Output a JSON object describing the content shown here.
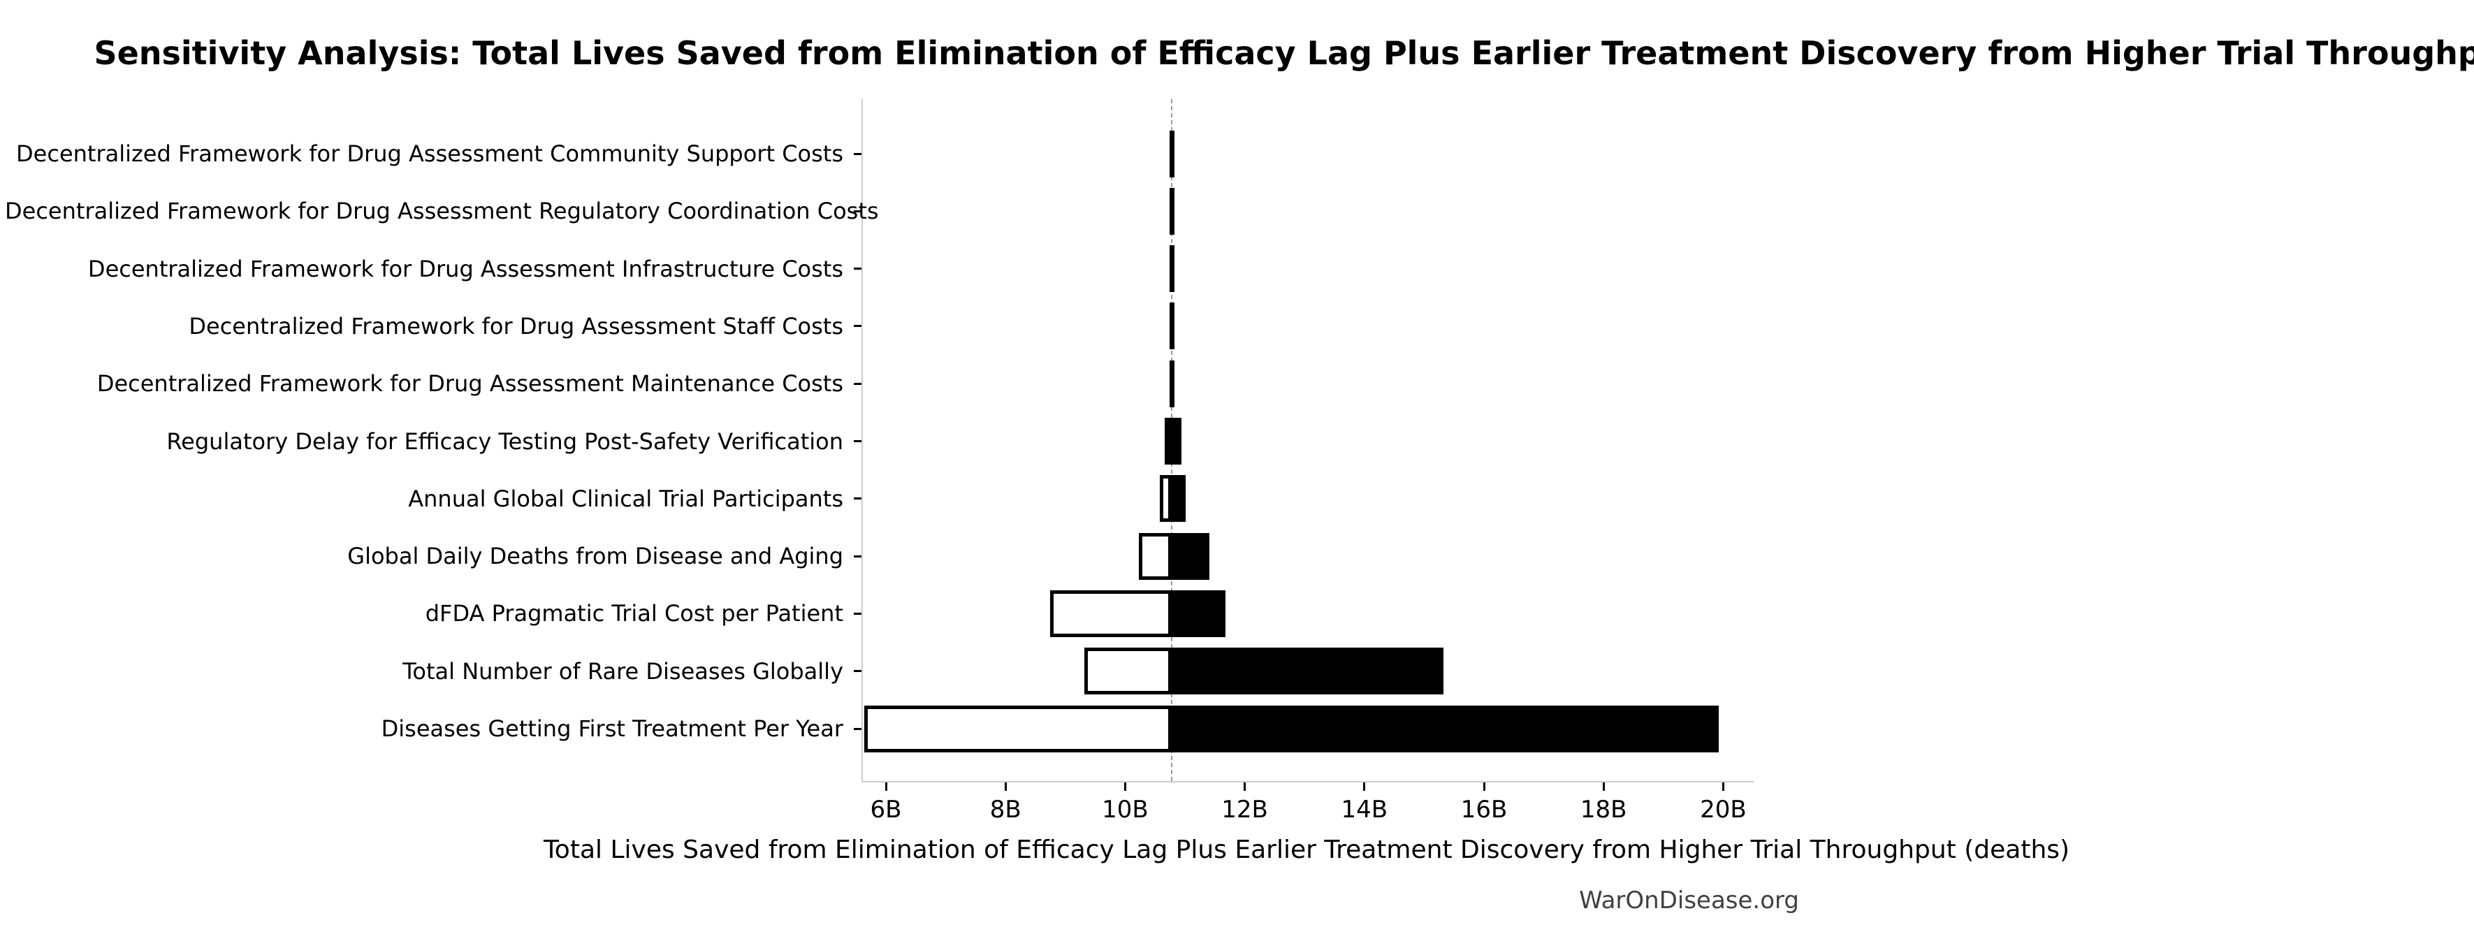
{
  "title": "Sensitivity Analysis: Total Lives Saved from Elimination of Efficacy Lag Plus Earlier Treatment Discovery from Higher Trial Throughput",
  "watermark": "WarOnDisease.org",
  "chart_data": {
    "type": "bar",
    "subtype": "tornado-sensitivity",
    "title": "Sensitivity Analysis: Total Lives Saved from Elimination of Efficacy Lag Plus Earlier Treatment Discovery from Higher Trial Throughput",
    "xlabel": "Total Lives Saved from Elimination of Efficacy Lag Plus Earlier Treatment Discovery from Higher Trial Throughput (deaths)",
    "ylabel": "",
    "unit": "billions of deaths averted",
    "xlim": [
      5.59,
      20.49
    ],
    "baseline": 10.76,
    "grid": false,
    "legend": null,
    "x_ticks": [
      {
        "value": 6,
        "label": "6B"
      },
      {
        "value": 8,
        "label": "8B"
      },
      {
        "value": 10,
        "label": "10B"
      },
      {
        "value": 12,
        "label": "12B"
      },
      {
        "value": 14,
        "label": "14B"
      },
      {
        "value": 16,
        "label": "16B"
      },
      {
        "value": 18,
        "label": "18B"
      },
      {
        "value": 20,
        "label": "20B"
      }
    ],
    "rows": [
      {
        "label": "Decentralized Framework for Drug Assessment Community Support Costs",
        "low": 10.73,
        "high": 10.78
      },
      {
        "label": "Decentralized Framework for Drug Assessment Regulatory Coordination Costs",
        "low": 10.73,
        "high": 10.78
      },
      {
        "label": "Decentralized Framework for Drug Assessment Infrastructure Costs",
        "low": 10.73,
        "high": 10.78
      },
      {
        "label": "Decentralized Framework for Drug Assessment Staff Costs",
        "low": 10.73,
        "high": 10.78
      },
      {
        "label": "Decentralized Framework for Drug Assessment Maintenance Costs",
        "low": 10.73,
        "high": 10.78
      },
      {
        "label": "Regulatory Delay for Efficacy Testing Post-Safety Verification",
        "low": 10.64,
        "high": 10.92
      },
      {
        "label": "Annual Global Clinical Trial Participants",
        "low": 10.56,
        "high": 10.99
      },
      {
        "label": "Global Daily Deaths from Disease and Aging",
        "low": 10.2,
        "high": 11.38
      },
      {
        "label": "dFDA Pragmatic Trial Cost per Patient",
        "low": 8.72,
        "high": 11.65
      },
      {
        "label": "Total Number of Rare Diseases Globally",
        "low": 9.3,
        "high": 15.3
      },
      {
        "label": "Diseases Getting First Treatment Per Year",
        "low": 5.62,
        "high": 19.9
      }
    ],
    "colors": {
      "low_bar_fill": "#ffffff",
      "high_bar_fill": "#000000",
      "bar_border": "#000000",
      "baseline_line": "#999999",
      "spine": "#cccccc",
      "watermark_text": "#404040"
    }
  }
}
